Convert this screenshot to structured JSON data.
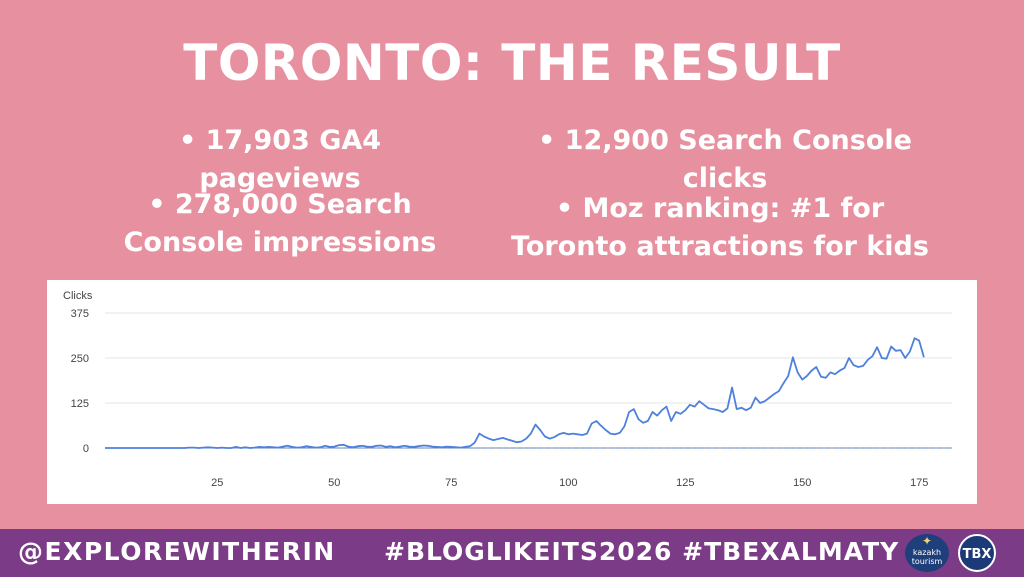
{
  "slide": {
    "title": "TORONTO: THE RESULT",
    "bullets": [
      "• 17,903 GA4 pageviews",
      "• 12,900 Search Console clicks",
      "• 278,000 Search Console impressions",
      "• Moz ranking: #1 for Toronto attractions for kids"
    ]
  },
  "footer": {
    "handle": "@EXPLOREWITHERIN",
    "hashtags": "#BLOGLIKEITS2026 #TBEXALMATY",
    "logo_kazakh": "kazakh tourism",
    "logo_tbx": "TBX"
  },
  "colors": {
    "background": "#e7909f",
    "footer": "#7b3b86",
    "line": "#4e80dd"
  },
  "chart_data": {
    "type": "line",
    "ylabel": "Clicks",
    "xlabel": "",
    "x_ticks": [
      25,
      50,
      75,
      100,
      125,
      150,
      175
    ],
    "y_ticks": [
      0,
      125,
      250,
      375
    ],
    "ylim": [
      0,
      375
    ],
    "xlim": [
      1,
      182
    ],
    "grid": true,
    "series": [
      {
        "values": [
          0,
          0,
          0,
          0,
          0,
          0,
          0,
          0,
          0,
          0,
          0,
          0,
          0,
          0,
          0,
          0,
          0,
          0,
          1,
          1,
          0,
          1,
          2,
          1,
          0,
          1,
          0,
          0,
          3,
          0,
          2,
          0,
          1,
          3,
          2,
          3,
          2,
          1,
          4,
          6,
          3,
          1,
          2,
          5,
          3,
          1,
          2,
          6,
          3,
          4,
          8,
          9,
          4,
          2,
          5,
          6,
          4,
          3,
          6,
          7,
          3,
          5,
          2,
          4,
          6,
          4,
          3,
          5,
          7,
          6,
          4,
          3,
          2,
          4,
          3,
          2,
          1,
          3,
          5,
          15,
          40,
          32,
          26,
          22,
          25,
          28,
          24,
          20,
          16,
          18,
          26,
          40,
          65,
          50,
          32,
          26,
          30,
          38,
          42,
          38,
          40,
          38,
          36,
          40,
          68,
          75,
          62,
          50,
          40,
          38,
          42,
          60,
          100,
          108,
          80,
          70,
          75,
          100,
          90,
          105,
          115,
          75,
          100,
          95,
          105,
          120,
          115,
          130,
          120,
          110,
          108,
          105,
          100,
          110,
          168,
          108,
          112,
          105,
          112,
          140,
          125,
          130,
          140,
          150,
          158,
          180,
          200,
          252,
          210,
          190,
          200,
          215,
          225,
          198,
          195,
          210,
          205,
          215,
          222,
          250,
          230,
          225,
          228,
          245,
          255,
          280,
          250,
          248,
          282,
          270,
          272,
          250,
          268,
          305,
          298,
          252
        ]
      }
    ]
  }
}
